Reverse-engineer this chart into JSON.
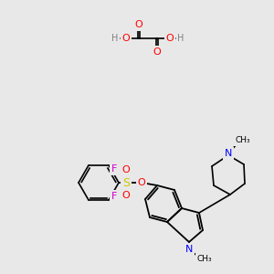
{
  "bg_color": "#e8e8e8",
  "bond_color": "#000000",
  "atom_colors": {
    "O": "#ff0000",
    "N": "#0000ff",
    "F": "#cc00cc",
    "S": "#cccc00",
    "H": "#808080",
    "C": "#000000"
  }
}
